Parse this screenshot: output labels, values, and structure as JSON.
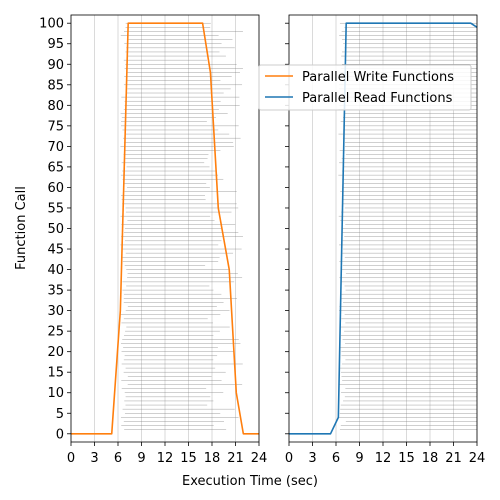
{
  "chart_data": [
    {
      "type": "line",
      "xlabel": "Execution Time (sec)",
      "ylabel": "Function Call",
      "xlim": [
        0,
        24
      ],
      "ylim": [
        -2,
        102
      ],
      "xticks": [
        0,
        3,
        6,
        9,
        12,
        15,
        18,
        21,
        24
      ],
      "yticks": [
        0,
        5,
        10,
        15,
        20,
        25,
        30,
        35,
        40,
        45,
        50,
        55,
        60,
        65,
        70,
        75,
        80,
        85,
        90,
        95,
        100
      ],
      "grid": "vertical",
      "series": [
        {
          "name": "Parallel Write Functions",
          "color": "#ff7f0e",
          "x": [
            0,
            5.2,
            6.3,
            7.3,
            16.8,
            17.8,
            18.8,
            20.2,
            21.1,
            22.0,
            24
          ],
          "y": [
            0,
            0,
            30,
            100,
            100,
            88,
            55,
            40,
            10,
            0,
            0
          ]
        }
      ],
      "call_span_lines": {
        "color": "#808080",
        "start_range": [
          6.3,
          7.3
        ],
        "end_range": [
          17.0,
          22.0
        ]
      }
    },
    {
      "type": "line",
      "xlabel": "Execution Time (sec)",
      "xlim": [
        0,
        24
      ],
      "ylim": [
        -2,
        102
      ],
      "xticks": [
        0,
        3,
        6,
        9,
        12,
        15,
        18,
        21,
        24
      ],
      "yticks": [
        0,
        5,
        10,
        15,
        20,
        25,
        30,
        35,
        40,
        45,
        50,
        55,
        60,
        65,
        70,
        75,
        80,
        85,
        90,
        95,
        100
      ],
      "grid": "vertical",
      "legend": "top-right",
      "series": [
        {
          "name": "Parallel Read Functions",
          "color": "#1f77b4",
          "x": [
            0,
            5.3,
            6.3,
            7.3,
            23.2,
            24
          ],
          "y": [
            0,
            0,
            4,
            100,
            100,
            99
          ]
        }
      ],
      "call_span_lines": {
        "color": "#808080",
        "start_range": [
          6.3,
          7.3
        ],
        "end_range": [
          24,
          24
        ]
      }
    }
  ],
  "legend": {
    "entries": [
      {
        "label": "Parallel Write Functions",
        "color": "#ff7f0e"
      },
      {
        "label": "Parallel Read Functions",
        "color": "#1f77b4"
      }
    ]
  }
}
